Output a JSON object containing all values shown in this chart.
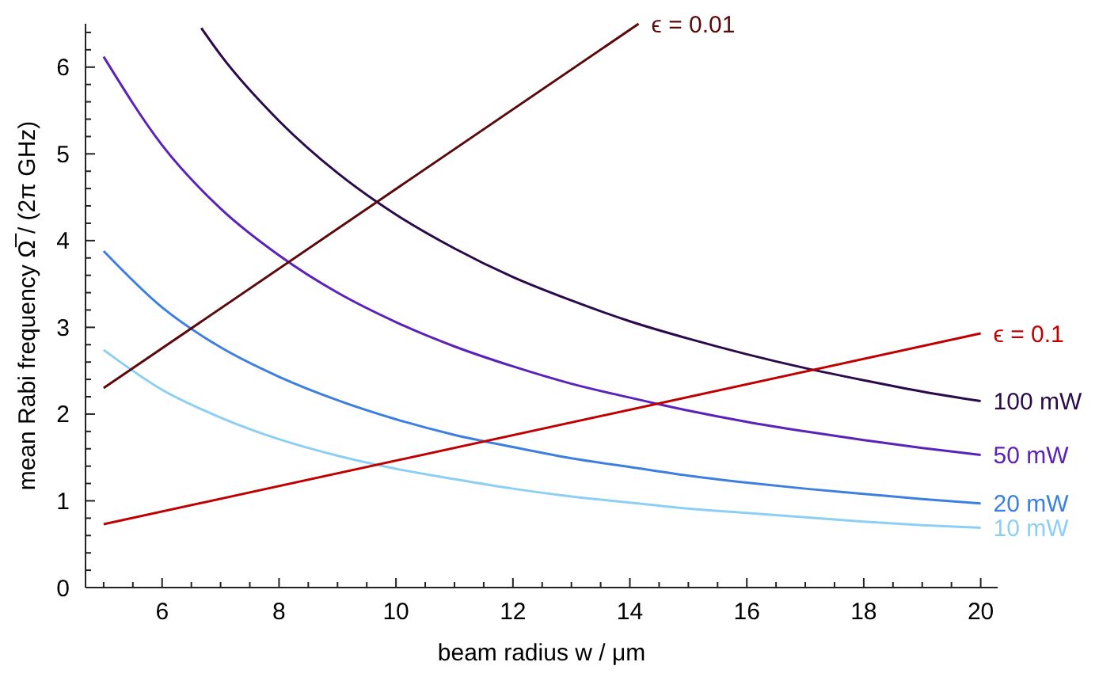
{
  "chart_data": {
    "type": "line",
    "xlabel": "beam radius w / μm",
    "ylabel": "mean Rabi frequency  Ω̅ / (2π GHz)",
    "xlim": [
      4.69,
      20.29
    ],
    "ylim": [
      0,
      6.5
    ],
    "xticks": [
      {
        "value": 5,
        "label": null
      },
      {
        "value": 5.5,
        "label": null
      },
      6,
      {
        "value": 6.5,
        "label": null
      },
      {
        "value": 7,
        "label": null
      },
      {
        "value": 7.5,
        "label": null
      },
      8,
      {
        "value": 8.5,
        "label": null
      },
      {
        "value": 9,
        "label": null
      },
      {
        "value": 9.5,
        "label": null
      },
      10,
      {
        "value": 10.5,
        "label": null
      },
      {
        "value": 11,
        "label": null
      },
      {
        "value": 11.5,
        "label": null
      },
      12,
      {
        "value": 12.5,
        "label": null
      },
      {
        "value": 13,
        "label": null
      },
      {
        "value": 13.5,
        "label": null
      },
      14,
      {
        "value": 14.5,
        "label": null
      },
      {
        "value": 15,
        "label": null
      },
      {
        "value": 15.5,
        "label": null
      },
      16,
      {
        "value": 16.5,
        "label": null
      },
      {
        "value": 17,
        "label": null
      },
      {
        "value": 17.5,
        "label": null
      },
      18,
      {
        "value": 18.5,
        "label": null
      },
      {
        "value": 19,
        "label": null
      },
      {
        "value": 19.5,
        "label": null
      },
      20
    ],
    "yticks": [
      0,
      {
        "value": 0.2,
        "label": null
      },
      {
        "value": 0.4,
        "label": null
      },
      {
        "value": 0.6,
        "label": null
      },
      {
        "value": 0.8,
        "label": null
      },
      1,
      {
        "value": 1.2,
        "label": null
      },
      {
        "value": 1.4,
        "label": null
      },
      {
        "value": 1.6,
        "label": null
      },
      {
        "value": 1.8,
        "label": null
      },
      2,
      {
        "value": 2.2,
        "label": null
      },
      {
        "value": 2.4,
        "label": null
      },
      {
        "value": 2.6,
        "label": null
      },
      {
        "value": 2.8,
        "label": null
      },
      3,
      {
        "value": 3.2,
        "label": null
      },
      {
        "value": 3.4,
        "label": null
      },
      {
        "value": 3.6,
        "label": null
      },
      {
        "value": 3.8,
        "label": null
      },
      4,
      {
        "value": 4.2,
        "label": null
      },
      {
        "value": 4.4,
        "label": null
      },
      {
        "value": 4.6,
        "label": null
      },
      {
        "value": 4.8,
        "label": null
      },
      5,
      {
        "value": 5.2,
        "label": null
      },
      {
        "value": 5.4,
        "label": null
      },
      {
        "value": 5.6,
        "label": null
      },
      {
        "value": 5.8,
        "label": null
      },
      6,
      {
        "value": 6.2,
        "label": null
      },
      {
        "value": 6.4,
        "label": null
      }
    ],
    "grid": false,
    "marker": "none",
    "line_style": "solid",
    "series": [
      {
        "name": "100 mW",
        "color": "#2a0a4a",
        "x": [
          6.67,
          7,
          8,
          9,
          10,
          11,
          12,
          13,
          14,
          15,
          16,
          17,
          18,
          19,
          20
        ],
        "values": [
          6.45,
          6.14,
          5.38,
          4.78,
          4.3,
          3.91,
          3.58,
          3.31,
          3.07,
          2.87,
          2.69,
          2.53,
          2.39,
          2.26,
          2.15
        ]
      },
      {
        "name": "50 mW",
        "color": "#5a22b8",
        "x": [
          5,
          6,
          7,
          8,
          9,
          10,
          11,
          12,
          13,
          14,
          15,
          16,
          17,
          18,
          19,
          20
        ],
        "values": [
          6.12,
          5.1,
          4.37,
          3.83,
          3.4,
          3.06,
          2.78,
          2.55,
          2.35,
          2.19,
          2.04,
          1.91,
          1.8,
          1.7,
          1.61,
          1.53
        ]
      },
      {
        "name": "20 mW",
        "color": "#3d7fe0",
        "x": [
          5,
          6,
          7,
          8,
          9,
          10,
          11,
          12,
          13,
          14,
          15,
          16,
          17,
          18,
          19,
          20
        ],
        "values": [
          3.88,
          3.23,
          2.77,
          2.43,
          2.16,
          1.94,
          1.76,
          1.62,
          1.49,
          1.39,
          1.29,
          1.21,
          1.14,
          1.08,
          1.02,
          0.97
        ]
      },
      {
        "name": "10 mW",
        "color": "#8ccff5",
        "x": [
          5,
          6,
          7,
          8,
          9,
          10,
          11,
          12,
          13,
          14,
          15,
          16,
          17,
          18,
          19,
          20
        ],
        "values": [
          2.74,
          2.28,
          1.96,
          1.71,
          1.52,
          1.37,
          1.25,
          1.14,
          1.05,
          0.98,
          0.91,
          0.86,
          0.81,
          0.76,
          0.72,
          0.69
        ]
      },
      {
        "name": "ϵ = 0.01",
        "color": "#5a0a0a",
        "x": [
          5,
          14.15
        ],
        "values": [
          2.3,
          6.5
        ]
      },
      {
        "name": "ϵ = 0.1",
        "color": "#c00000",
        "x": [
          5,
          20
        ],
        "values": [
          0.73,
          2.93
        ]
      }
    ]
  }
}
